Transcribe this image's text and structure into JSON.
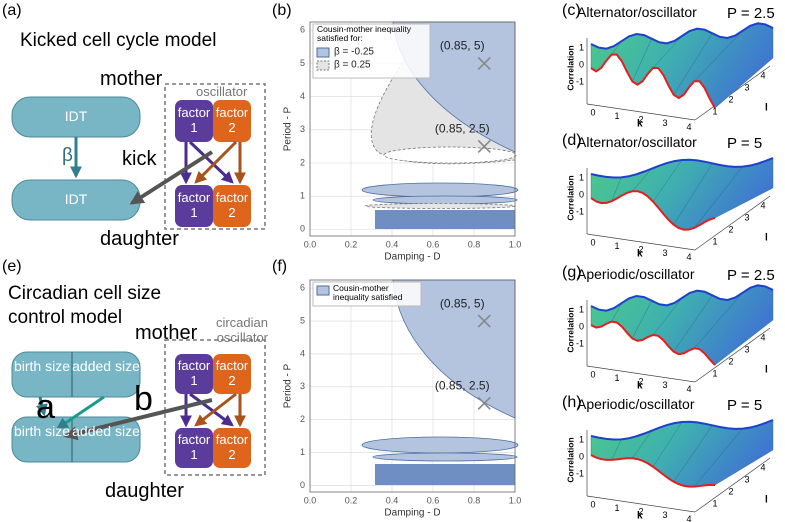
{
  "panel_labels": {
    "a": "(a)",
    "b": "(b)",
    "c": "(c)",
    "d": "(d)",
    "e": "(e)",
    "f": "(f)",
    "g": "(g)",
    "h": "(h)"
  },
  "model_a": {
    "title": "Kicked cell cycle model",
    "mother": "mother",
    "daughter": "daughter",
    "oscillator": "oscillator",
    "idt_top": "IDT",
    "idt_bottom": "IDT",
    "beta": "β",
    "kick": "kick",
    "factors": [
      "factor 1",
      "factor 2",
      "factor 1",
      "factor 2"
    ]
  },
  "model_e": {
    "title": "Circadian cell size control model",
    "mother": "mother",
    "daughter": "daughter",
    "oscillator": "circadian oscillator",
    "mother_cells": [
      "birth size",
      "added size"
    ],
    "daughter_cells": [
      "birth size",
      "added size"
    ],
    "a": "a",
    "b": "b",
    "factors": [
      "factor 1",
      "factor 2",
      "factor 1",
      "factor 2"
    ]
  },
  "chart_data": [
    {
      "type": "scatter",
      "xlabel": "Damping - D",
      "ylabel": "Period - P",
      "xlim": [
        0,
        1
      ],
      "ylim": [
        -0.2,
        6.25
      ],
      "xticks": [
        {
          "value": 0,
          "label": "0.0"
        },
        0.2,
        0.4,
        0.6,
        0.8,
        {
          "value": 1,
          "label": "1.0"
        }
      ],
      "yticks": [
        0,
        1,
        2,
        3,
        4,
        5,
        6
      ],
      "grid": true,
      "x": [
        0.85,
        0.85
      ],
      "values": [
        5,
        2.5
      ],
      "value_labels": [
        "(0.85, 5)",
        "(0.85, 2.5)"
      ],
      "color": "#888888",
      "legend": {
        "title": "Cousin-mother inequality satisfied for:",
        "entries": [
          "β = -0.25",
          "β = 0.25"
        ]
      }
    },
    {
      "type": "scatter",
      "xlabel": "Damping - D",
      "ylabel": "Period - P",
      "xlim": [
        0,
        1
      ],
      "ylim": [
        -0.2,
        6.25
      ],
      "xticks": [
        {
          "value": 0,
          "label": "0.0"
        },
        0.2,
        0.4,
        0.6,
        0.8,
        {
          "value": 1,
          "label": "1.0"
        }
      ],
      "yticks": [
        0,
        1,
        2,
        3,
        4,
        5,
        6
      ],
      "grid": true,
      "x": [
        0.85,
        0.85
      ],
      "values": [
        5,
        2.5
      ],
      "value_labels": [
        "(0.85, 5)",
        "(0.85, 2.5)"
      ],
      "color": "#888888",
      "legend": {
        "title": "Cousin-mother inequality satisfied"
      }
    }
  ],
  "surfaces": [
    {
      "title": "Alternator/oscillator",
      "param": "P = 2.5",
      "zlabel": "Correlation",
      "klabel": "k",
      "llabel": "l",
      "zticks": [
        1,
        0,
        -1
      ],
      "kticks": [
        0,
        1,
        2,
        3,
        4
      ],
      "lticks": [
        1,
        2,
        3,
        4
      ]
    },
    {
      "title": "Alternator/oscillator",
      "param": "P = 5",
      "zlabel": "Correlation",
      "klabel": "k",
      "llabel": "l",
      "zticks": [
        1,
        0,
        -1
      ],
      "kticks": [
        0,
        1,
        2,
        3,
        4
      ],
      "lticks": [
        1,
        2,
        3,
        4
      ]
    },
    {
      "title": "Aperiodic/oscillator",
      "param": "P = 2.5",
      "zlabel": "Correlation",
      "klabel": "k",
      "llabel": "l",
      "zticks": [
        1,
        0,
        -1
      ],
      "kticks": [
        0,
        1,
        2,
        3,
        4
      ],
      "lticks": [
        1,
        2,
        3,
        4
      ]
    },
    {
      "title": "Aperiodic/oscillator",
      "param": "P = 5",
      "zlabel": "Correlation",
      "klabel": "k",
      "llabel": "l",
      "zticks": [
        1,
        0,
        -1
      ],
      "kticks": [
        0,
        1,
        2,
        3,
        4
      ],
      "lticks": [
        1,
        2,
        3,
        4
      ]
    }
  ]
}
